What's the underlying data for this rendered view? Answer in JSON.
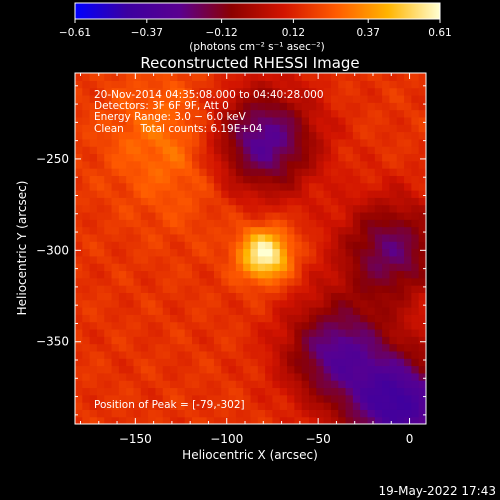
{
  "chart_data": {
    "type": "heatmap",
    "title": "Reconstructed RHESSI Image",
    "xlabel": "Heliocentric X (arcsec)",
    "ylabel": "Heliocentric Y (arcsec)",
    "xlim": [
      -183,
      9
    ],
    "ylim": [
      -395,
      -203
    ],
    "xticks": [
      -150,
      -100,
      -50,
      0
    ],
    "xtick_labels": [
      "−150",
      "−100",
      "−50",
      "0"
    ],
    "yticks": [
      -250,
      -300,
      -350
    ],
    "ytick_labels": [
      "−250",
      "−300",
      "−350"
    ],
    "colorbar": {
      "min": -0.61,
      "max": 0.61,
      "ticks": [
        -0.61,
        -0.37,
        -0.12,
        0.12,
        0.37,
        0.61
      ],
      "tick_labels": [
        "−0.61",
        "−0.37",
        "−0.12",
        "0.12",
        "0.37",
        "0.61"
      ],
      "unit_label": "(photons cm⁻² s⁻¹ asec⁻²)",
      "colors": [
        "#0000ff",
        "#3c00a0",
        "#5a0090",
        "#8c0000",
        "#d21400",
        "#ff5a00",
        "#ffb400",
        "#ffffd2"
      ]
    },
    "annotations": [
      "20-Nov-2014 04:35:08.000 to 04:40:28.000",
      "Detectors: 3F 6F 9F, Att 0",
      "Energy Range: 3.0 − 6.0 keV",
      "Clean     Total counts: 6.19E+04"
    ],
    "peak_label": "Position of Peak = [-79,-302]",
    "peak": {
      "x": -79,
      "y": -302,
      "value": 0.61
    },
    "features": [
      {
        "kind": "ridge",
        "x": -135,
        "y": -235,
        "value": 0.3
      },
      {
        "kind": "ridge",
        "x": -120,
        "y": -265,
        "value": 0.22
      },
      {
        "kind": "trough",
        "x": -80,
        "y": -240,
        "value": -0.35
      },
      {
        "kind": "trough",
        "x": -10,
        "y": -300,
        "value": -0.25
      },
      {
        "kind": "trough",
        "x": -40,
        "y": -355,
        "value": -0.3
      },
      {
        "kind": "trough",
        "x": -5,
        "y": -385,
        "value": -0.45
      }
    ]
  },
  "footer": {
    "timestamp": "19-May-2022 17:43"
  }
}
